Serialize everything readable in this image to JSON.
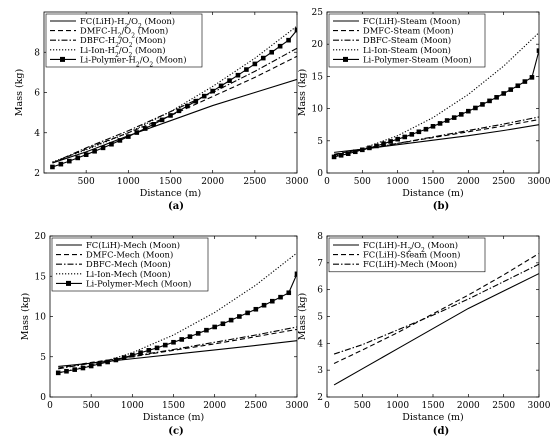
{
  "chart_data": [
    {
      "type": "line",
      "panel_label": "(a)",
      "xlabel": "Distance (m)",
      "ylabel": "Mass (kg)",
      "xlim": [
        0,
        3000
      ],
      "ylim": [
        2,
        10
      ],
      "xticks": [
        500,
        1000,
        1500,
        2000,
        2500,
        3000
      ],
      "yticks": [
        2,
        4,
        6,
        8
      ],
      "legend_position": "top-left",
      "series": [
        {
          "name": "FC(LiH)-H$_2$/O$_2$ (Moon)",
          "style": "solid",
          "x": [
            100,
            500,
            1000,
            1500,
            2000,
            2500,
            3000
          ],
          "y": [
            2.5,
            3.05,
            3.85,
            4.6,
            5.35,
            6.0,
            6.65
          ]
        },
        {
          "name": "DMFC-H$_2$/O$_2$ (Moon)",
          "style": "dashed",
          "x": [
            100,
            500,
            1000,
            1500,
            2000,
            2500,
            3000
          ],
          "y": [
            2.5,
            3.2,
            4.0,
            4.85,
            5.8,
            6.75,
            7.8
          ]
        },
        {
          "name": "DBFC-H$_2$/O$_2$ (Moon)",
          "style": "dashdot",
          "x": [
            100,
            500,
            1000,
            1500,
            2000,
            2500,
            3000
          ],
          "y": [
            2.5,
            3.25,
            4.1,
            5.05,
            6.0,
            7.05,
            8.2
          ]
        },
        {
          "name": "Li-Ion-H$_2$/O$_2$ (Moon)",
          "style": "dotted",
          "x": [
            100,
            500,
            1000,
            1500,
            2000,
            2500,
            3000
          ],
          "y": [
            2.55,
            3.15,
            4.0,
            5.05,
            6.3,
            7.7,
            9.3
          ]
        },
        {
          "name": "Li-Polymer-H$_2$/O$_2$ (Moon)",
          "style": "solid-square",
          "x": [
            100,
            200,
            300,
            400,
            500,
            600,
            700,
            800,
            900,
            1000,
            1100,
            1200,
            1300,
            1400,
            1500,
            1600,
            1700,
            1800,
            1900,
            2000,
            2100,
            2200,
            2300,
            2400,
            2500,
            2600,
            2700,
            2800,
            2900,
            3000
          ],
          "y": [
            2.3,
            2.44,
            2.59,
            2.75,
            2.91,
            3.08,
            3.25,
            3.43,
            3.62,
            3.81,
            4.01,
            4.21,
            4.42,
            4.64,
            4.86,
            5.09,
            5.33,
            5.57,
            5.82,
            6.07,
            6.33,
            6.59,
            6.86,
            7.14,
            7.42,
            7.71,
            8.0,
            8.3,
            8.6,
            9.1
          ]
        }
      ]
    },
    {
      "type": "line",
      "panel_label": "(b)",
      "xlabel": "Distance (m)",
      "ylabel": "Mass (kg)",
      "xlim": [
        0,
        3000
      ],
      "ylim": [
        0,
        25
      ],
      "xticks": [
        0,
        500,
        1000,
        1500,
        2000,
        2500,
        3000
      ],
      "yticks": [
        0,
        5,
        10,
        15,
        20,
        25
      ],
      "legend_position": "top-left",
      "series": [
        {
          "name": "FC(LiH)-Steam (Moon)",
          "style": "solid",
          "x": [
            100,
            500,
            1000,
            1500,
            2000,
            2500,
            3000
          ],
          "y": [
            3.2,
            3.7,
            4.4,
            5.1,
            5.8,
            6.6,
            7.5
          ]
        },
        {
          "name": "DMFC-Steam (Moon)",
          "style": "dashed",
          "x": [
            100,
            500,
            1000,
            1500,
            2000,
            2500,
            3000
          ],
          "y": [
            2.9,
            3.7,
            4.6,
            5.5,
            6.4,
            7.3,
            8.3
          ]
        },
        {
          "name": "DBFC-Steam (Moon)",
          "style": "dashdot",
          "x": [
            100,
            500,
            1000,
            1500,
            2000,
            2500,
            3000
          ],
          "y": [
            2.8,
            3.6,
            4.6,
            5.6,
            6.6,
            7.6,
            8.7
          ]
        },
        {
          "name": "Li-Ion-Steam (Moon)",
          "style": "dotted",
          "x": [
            100,
            500,
            1000,
            1500,
            2000,
            2500,
            3000
          ],
          "y": [
            2.6,
            3.8,
            5.8,
            8.6,
            12.2,
            16.6,
            21.8
          ]
        },
        {
          "name": "Li-Polymer-Steam (Moon)",
          "style": "solid-square",
          "x": [
            100,
            200,
            300,
            400,
            500,
            600,
            700,
            800,
            900,
            1000,
            1100,
            1200,
            1300,
            1400,
            1500,
            1600,
            1700,
            1800,
            1900,
            2000,
            2100,
            2200,
            2300,
            2400,
            2500,
            2600,
            2700,
            2800,
            2900,
            3000
          ],
          "y": [
            2.5,
            2.75,
            3.0,
            3.3,
            3.6,
            3.9,
            4.2,
            4.55,
            4.9,
            5.25,
            5.6,
            6.0,
            6.4,
            6.8,
            7.25,
            7.7,
            8.15,
            8.6,
            9.1,
            9.6,
            10.1,
            10.65,
            11.2,
            11.75,
            12.35,
            12.95,
            13.55,
            14.2,
            14.85,
            19.0
          ]
        }
      ]
    },
    {
      "type": "line",
      "panel_label": "(c)",
      "xlabel": "Distance (m)",
      "ylabel": "Mass (kg)",
      "xlim": [
        0,
        3000
      ],
      "ylim": [
        0,
        20
      ],
      "xticks": [
        0,
        500,
        1000,
        1500,
        2000,
        2500,
        3000
      ],
      "yticks": [
        0,
        5,
        10,
        15,
        20
      ],
      "legend_position": "top-left",
      "series": [
        {
          "name": "FC(LiH)-Mech (Moon)",
          "style": "solid",
          "x": [
            100,
            500,
            1000,
            1500,
            2000,
            2500,
            3000
          ],
          "y": [
            3.8,
            4.2,
            4.75,
            5.3,
            5.85,
            6.4,
            7.0
          ]
        },
        {
          "name": "DMFC-Mech (Moon)",
          "style": "dashed",
          "x": [
            100,
            500,
            1000,
            1500,
            2000,
            2500,
            3000
          ],
          "y": [
            3.6,
            4.3,
            5.0,
            5.8,
            6.6,
            7.5,
            8.4
          ]
        },
        {
          "name": "DBFC-Mech (Moon)",
          "style": "dashdot",
          "x": [
            100,
            500,
            1000,
            1500,
            2000,
            2500,
            3000
          ],
          "y": [
            3.5,
            4.2,
            5.05,
            5.9,
            6.8,
            7.7,
            8.7
          ]
        },
        {
          "name": "Li-Ion-Mech (Moon)",
          "style": "dotted",
          "x": [
            100,
            500,
            1000,
            1500,
            2000,
            2500,
            3000
          ],
          "y": [
            3.0,
            3.9,
            5.5,
            7.7,
            10.5,
            13.9,
            17.9
          ]
        },
        {
          "name": "Li-Polymer-Mech (Moon)",
          "style": "solid-square",
          "x": [
            100,
            200,
            300,
            400,
            500,
            600,
            700,
            800,
            900,
            1000,
            1100,
            1200,
            1300,
            1400,
            1500,
            1600,
            1700,
            1800,
            1900,
            2000,
            2100,
            2200,
            2300,
            2400,
            2500,
            2600,
            2700,
            2800,
            2900,
            3000
          ],
          "y": [
            3.0,
            3.2,
            3.4,
            3.6,
            3.85,
            4.1,
            4.35,
            4.6,
            4.9,
            5.2,
            5.5,
            5.8,
            6.1,
            6.45,
            6.8,
            7.15,
            7.5,
            7.9,
            8.3,
            8.7,
            9.1,
            9.55,
            10.0,
            10.45,
            10.9,
            11.4,
            11.9,
            12.4,
            12.95,
            15.3
          ]
        }
      ]
    },
    {
      "type": "line",
      "panel_label": "(d)",
      "xlabel": "Distance (m)",
      "ylabel": "Mass (kg)",
      "xlim": [
        0,
        3000
      ],
      "ylim": [
        2,
        8
      ],
      "xticks": [
        0,
        500,
        1000,
        1500,
        2000,
        2500,
        3000
      ],
      "yticks": [
        2,
        3,
        4,
        5,
        6,
        7,
        8
      ],
      "legend_position": "top-left",
      "series": [
        {
          "name": "FC(LiH)-H$_2$/O$_2$ (Moon)",
          "style": "solid",
          "x": [
            100,
            500,
            1000,
            1500,
            2000,
            2500,
            3000
          ],
          "y": [
            2.45,
            3.05,
            3.8,
            4.55,
            5.3,
            5.95,
            6.6
          ]
        },
        {
          "name": "FC(LiH)-Steam (Moon)",
          "style": "dashed",
          "x": [
            100,
            500,
            1000,
            1500,
            2000,
            2500,
            3000
          ],
          "y": [
            3.25,
            3.75,
            4.4,
            5.1,
            5.8,
            6.55,
            7.35
          ]
        },
        {
          "name": "FC(LiH)-Mech (Moon)",
          "style": "dashdot",
          "x": [
            100,
            500,
            1000,
            1500,
            2000,
            2500,
            3000
          ],
          "y": [
            3.6,
            3.95,
            4.5,
            5.05,
            5.65,
            6.3,
            6.95
          ]
        }
      ]
    }
  ]
}
